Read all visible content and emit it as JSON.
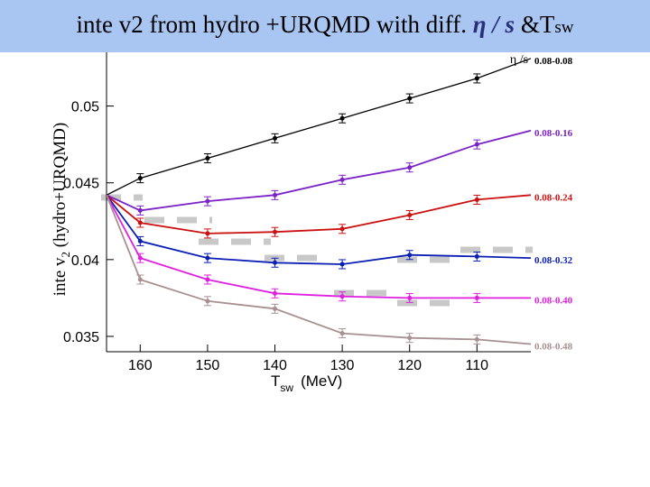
{
  "slide": {
    "title_prefix": "inte v2 from hydro +URQMD with diff.",
    "title_math": "η / s",
    "title_amp": " &",
    "title_T": "T",
    "title_sub": "sw"
  },
  "chart_data": {
    "type": "line",
    "xlabel_main": "T",
    "xlabel_sub": "sw",
    "xlabel_unit": "(MeV)",
    "ylabel_pre": "inte v",
    "ylabel_sub": "2",
    "ylabel_post": " (hydro+URQMD)",
    "legend_title": "η /s",
    "x_reversed": true,
    "xlim": [
      165,
      102
    ],
    "ylim": [
      0.034,
      0.0535
    ],
    "x_ticks": [
      160,
      150,
      140,
      130,
      120,
      110
    ],
    "y_ticks": [
      0.035,
      0.04,
      0.045,
      0.05
    ],
    "y_tick_labels": [
      "0.035",
      "0.04",
      "0.045",
      "0.05"
    ],
    "series": [
      {
        "name": "0.08-0.08",
        "color": "#000000",
        "x": [
          165,
          160,
          150,
          140,
          130,
          120,
          110,
          102
        ],
        "y": [
          0.0442,
          0.0453,
          0.0466,
          0.0479,
          0.0492,
          0.0505,
          0.0518,
          0.0531
        ]
      },
      {
        "name": "0.08-0.16",
        "color": "#7b22c8",
        "x": [
          165,
          160,
          150,
          140,
          130,
          120,
          110,
          102
        ],
        "y": [
          0.0442,
          0.0432,
          0.0438,
          0.0442,
          0.0452,
          0.046,
          0.0475,
          0.0484
        ]
      },
      {
        "name": "0.08-0.24",
        "color": "#cc1111",
        "x": [
          165,
          160,
          150,
          140,
          130,
          120,
          110,
          102
        ],
        "y": [
          0.0442,
          0.0424,
          0.0417,
          0.0418,
          0.042,
          0.0429,
          0.0439,
          0.0442
        ]
      },
      {
        "name": "0.08-0.32",
        "color": "#0a1eb4",
        "x": [
          165,
          160,
          150,
          140,
          130,
          120,
          110,
          102
        ],
        "y": [
          0.0442,
          0.0412,
          0.0401,
          0.0398,
          0.0397,
          0.0403,
          0.0402,
          0.0401
        ]
      },
      {
        "name": "0.08-0.40",
        "color": "#e020e0",
        "x": [
          165,
          160,
          150,
          140,
          130,
          120,
          110,
          102
        ],
        "y": [
          0.0442,
          0.0401,
          0.0387,
          0.0378,
          0.0376,
          0.0375,
          0.0375,
          0.0375
        ]
      },
      {
        "name": "0.08-0.48",
        "color": "#a89090",
        "x": [
          165,
          160,
          150,
          140,
          130,
          120,
          110,
          102
        ],
        "y": [
          0.0442,
          0.0387,
          0.0373,
          0.0368,
          0.0352,
          0.0349,
          0.0348,
          0.0345
        ]
      }
    ]
  }
}
